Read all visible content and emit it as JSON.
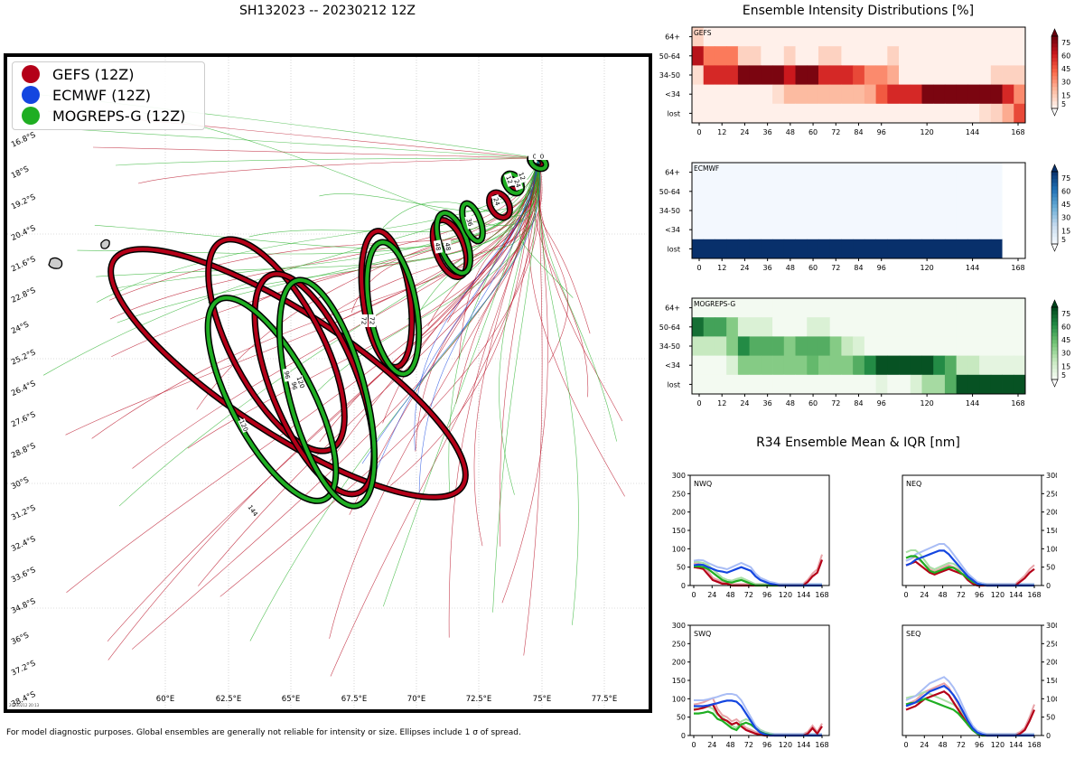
{
  "title": "SH132023 -- 20230212 12Z",
  "legend": [
    {
      "label": "GEFS (12Z)",
      "color": "#b40018"
    },
    {
      "label": "ECMWF (12Z)",
      "color": "#1446e0"
    },
    {
      "label": "MOGREPS-G (12Z)",
      "color": "#1fae22"
    }
  ],
  "map": {
    "lat_labels": [
      "16.8°S",
      "18°S",
      "19.2°S",
      "20.4°S",
      "21.6°S",
      "22.8°S",
      "24°S",
      "25.2°S",
      "26.4°S",
      "27.6°S",
      "28.8°S",
      "30°S",
      "31.2°S",
      "32.4°S",
      "33.6°S",
      "34.8°S",
      "36°S",
      "37.2°S",
      "38.4°S"
    ],
    "lon_labels": [
      "60°E",
      "62.5°E",
      "65°E",
      "67.5°E",
      "70°E",
      "72.5°E",
      "75°E",
      "77.5°E"
    ],
    "ellipse_labels": {
      "gefs": [
        "0",
        "12",
        "24",
        "48",
        "72",
        "96",
        "120",
        "144"
      ],
      "mogreps": [
        "0",
        "12",
        "24",
        "36",
        "48",
        "72",
        "96",
        "120"
      ]
    },
    "stamp": "20230212 20:13"
  },
  "intensity": {
    "title": "Ensemble Intensity Distributions [%]",
    "row_labels": [
      "64+",
      "50-64",
      "34-50",
      "<34",
      "lost"
    ],
    "x_ticks": [
      "0",
      "12",
      "24",
      "36",
      "48",
      "60",
      "72",
      "84",
      "96",
      "120",
      "144",
      "168"
    ],
    "colorbar_ticks": [
      "75",
      "60",
      "45",
      "30",
      "15",
      "5"
    ],
    "panels": [
      {
        "name": "GEFS",
        "scale": "reds",
        "rows": [
          [
            15,
            2,
            2,
            2,
            2,
            2,
            2,
            2,
            2,
            2,
            2,
            2,
            2,
            2,
            2,
            2,
            2,
            2,
            2,
            2,
            2,
            2,
            2,
            2,
            2,
            2,
            2,
            2,
            2
          ],
          [
            80,
            45,
            45,
            45,
            15,
            15,
            2,
            2,
            15,
            2,
            2,
            15,
            15,
            2,
            2,
            2,
            2,
            15,
            2,
            2,
            2,
            2,
            2,
            2,
            2,
            2,
            2,
            2,
            2
          ],
          [
            10,
            70,
            70,
            70,
            95,
            95,
            95,
            95,
            75,
            95,
            95,
            70,
            70,
            70,
            60,
            40,
            40,
            30,
            2,
            2,
            2,
            2,
            2,
            2,
            2,
            2,
            15,
            15,
            15
          ],
          [
            2,
            2,
            2,
            2,
            2,
            2,
            2,
            10,
            25,
            25,
            25,
            25,
            25,
            25,
            25,
            30,
            55,
            70,
            70,
            70,
            95,
            95,
            95,
            95,
            95,
            95,
            95,
            70,
            40
          ],
          [
            2,
            2,
            2,
            2,
            2,
            2,
            2,
            2,
            2,
            2,
            2,
            2,
            2,
            2,
            2,
            2,
            2,
            2,
            2,
            2,
            2,
            2,
            2,
            2,
            2,
            10,
            15,
            30,
            60
          ]
        ]
      },
      {
        "name": "ECMWF",
        "scale": "blues",
        "rows": [
          [
            2,
            2,
            2,
            2,
            2,
            2,
            2,
            2,
            2,
            2,
            2,
            2,
            2,
            2,
            2,
            2,
            2,
            2,
            2,
            2,
            2,
            2,
            2,
            2,
            2,
            2,
            2,
            0,
            0
          ],
          [
            2,
            2,
            2,
            2,
            2,
            2,
            2,
            2,
            2,
            2,
            2,
            2,
            2,
            2,
            2,
            2,
            2,
            2,
            2,
            2,
            2,
            2,
            2,
            2,
            2,
            2,
            2,
            0,
            0
          ],
          [
            2,
            2,
            2,
            2,
            2,
            2,
            2,
            2,
            2,
            2,
            2,
            2,
            2,
            2,
            2,
            2,
            2,
            2,
            2,
            2,
            2,
            2,
            2,
            2,
            2,
            2,
            2,
            0,
            0
          ],
          [
            2,
            2,
            2,
            2,
            2,
            2,
            2,
            2,
            2,
            2,
            2,
            2,
            2,
            2,
            2,
            2,
            2,
            2,
            2,
            2,
            2,
            2,
            2,
            2,
            2,
            2,
            2,
            0,
            0
          ],
          [
            100,
            100,
            100,
            100,
            100,
            100,
            100,
            100,
            100,
            100,
            100,
            100,
            100,
            100,
            100,
            100,
            100,
            100,
            100,
            100,
            100,
            100,
            100,
            100,
            100,
            100,
            100,
            0,
            0
          ]
        ]
      },
      {
        "name": "MOGREPS-G",
        "scale": "greens",
        "rows": [
          [
            2,
            2,
            2,
            2,
            2,
            2,
            2,
            2,
            2,
            2,
            2,
            2,
            2,
            2,
            2,
            2,
            2,
            2,
            2,
            2,
            2,
            2,
            2,
            2,
            2,
            2,
            2,
            2,
            2
          ],
          [
            85,
            65,
            65,
            45,
            15,
            15,
            15,
            2,
            2,
            2,
            15,
            15,
            2,
            2,
            2,
            2,
            2,
            2,
            2,
            2,
            2,
            2,
            2,
            2,
            2,
            2,
            2,
            2,
            2
          ],
          [
            25,
            25,
            25,
            45,
            75,
            60,
            60,
            60,
            45,
            60,
            60,
            60,
            45,
            25,
            15,
            2,
            2,
            2,
            2,
            2,
            2,
            2,
            2,
            2,
            2,
            2,
            2,
            2,
            2
          ],
          [
            2,
            2,
            2,
            15,
            45,
            45,
            45,
            45,
            45,
            45,
            55,
            45,
            45,
            45,
            60,
            75,
            95,
            95,
            95,
            95,
            95,
            75,
            60,
            25,
            25,
            10,
            10,
            10,
            10
          ],
          [
            2,
            2,
            2,
            2,
            2,
            2,
            2,
            2,
            2,
            2,
            2,
            2,
            2,
            2,
            2,
            2,
            10,
            2,
            2,
            15,
            35,
            35,
            60,
            95,
            95,
            95,
            95,
            95,
            95
          ]
        ]
      }
    ]
  },
  "r34": {
    "title": "R34 Ensemble Mean & IQR [nm]",
    "y_ticks": [
      "0",
      "50",
      "100",
      "150",
      "200",
      "250",
      "300"
    ],
    "x_ticks": [
      "0",
      "24",
      "48",
      "72",
      "96",
      "120",
      "144",
      "168"
    ],
    "panels": [
      {
        "name": "NWQ",
        "side": "left",
        "gefs": [
          50,
          48,
          45,
          30,
          15,
          10,
          5,
          5,
          0,
          0,
          0,
          0,
          0,
          0,
          0,
          0,
          0,
          0,
          0,
          0,
          0,
          0,
          0,
          0,
          10,
          25,
          35,
          70
        ],
        "ecmwf": [
          55,
          57,
          56,
          50,
          45,
          40,
          38,
          35,
          40,
          45,
          50,
          45,
          40,
          25,
          15,
          10,
          5,
          3,
          0,
          0,
          0,
          0,
          0,
          0,
          0,
          0,
          0,
          0
        ],
        "mogreps": [
          52,
          52,
          50,
          45,
          35,
          25,
          15,
          10,
          8,
          12,
          15,
          10,
          5,
          0,
          0,
          0,
          0,
          0,
          0,
          0,
          0,
          0,
          0,
          0,
          0,
          0,
          0,
          0
        ]
      },
      {
        "name": "NEQ",
        "side": "right",
        "gefs": [
          55,
          60,
          65,
          55,
          45,
          35,
          30,
          35,
          40,
          45,
          40,
          35,
          30,
          15,
          5,
          0,
          0,
          0,
          0,
          0,
          0,
          0,
          0,
          0,
          10,
          20,
          35,
          45
        ],
        "ecmwf": [
          55,
          60,
          70,
          75,
          80,
          85,
          90,
          95,
          95,
          85,
          70,
          55,
          40,
          25,
          15,
          5,
          2,
          0,
          0,
          0,
          0,
          0,
          0,
          0,
          0,
          0,
          0,
          0
        ],
        "mogreps": [
          75,
          80,
          80,
          70,
          55,
          40,
          35,
          40,
          45,
          50,
          48,
          40,
          30,
          20,
          10,
          5,
          2,
          0,
          0,
          0,
          0,
          0,
          0,
          0,
          0,
          0,
          0,
          0
        ]
      },
      {
        "name": "SWQ",
        "side": "left",
        "gefs": [
          70,
          72,
          75,
          80,
          85,
          60,
          45,
          40,
          30,
          35,
          25,
          15,
          10,
          5,
          2,
          0,
          0,
          0,
          0,
          0,
          0,
          0,
          0,
          0,
          5,
          20,
          5,
          25
        ],
        "ecmwf": [
          80,
          80,
          80,
          82,
          85,
          88,
          92,
          95,
          95,
          92,
          80,
          60,
          40,
          20,
          8,
          3,
          0,
          0,
          0,
          0,
          0,
          0,
          0,
          0,
          0,
          0,
          0,
          0
        ],
        "mogreps": [
          60,
          60,
          62,
          65,
          60,
          45,
          40,
          30,
          20,
          15,
          30,
          35,
          30,
          20,
          10,
          5,
          2,
          0,
          0,
          0,
          0,
          0,
          0,
          0,
          0,
          0,
          0,
          0
        ]
      },
      {
        "name": "SEQ",
        "side": "right",
        "gefs": [
          70,
          75,
          80,
          90,
          100,
          105,
          110,
          115,
          120,
          110,
          90,
          70,
          50,
          30,
          15,
          5,
          0,
          0,
          0,
          0,
          0,
          0,
          0,
          0,
          5,
          15,
          40,
          70
        ],
        "ecmwf": [
          80,
          85,
          90,
          100,
          110,
          120,
          125,
          130,
          135,
          125,
          110,
          90,
          65,
          40,
          20,
          8,
          3,
          0,
          0,
          0,
          0,
          0,
          0,
          0,
          0,
          0,
          0,
          0
        ],
        "mogreps": [
          85,
          88,
          90,
          95,
          100,
          95,
          90,
          85,
          80,
          75,
          70,
          60,
          45,
          30,
          15,
          5,
          0,
          0,
          0,
          0,
          0,
          0,
          0,
          0,
          0,
          0,
          0,
          0
        ]
      }
    ]
  },
  "footnote": "For model diagnostic purposes. Global ensembles are generally not reliable for intensity or size. Ellipses include 1 σ of spread."
}
